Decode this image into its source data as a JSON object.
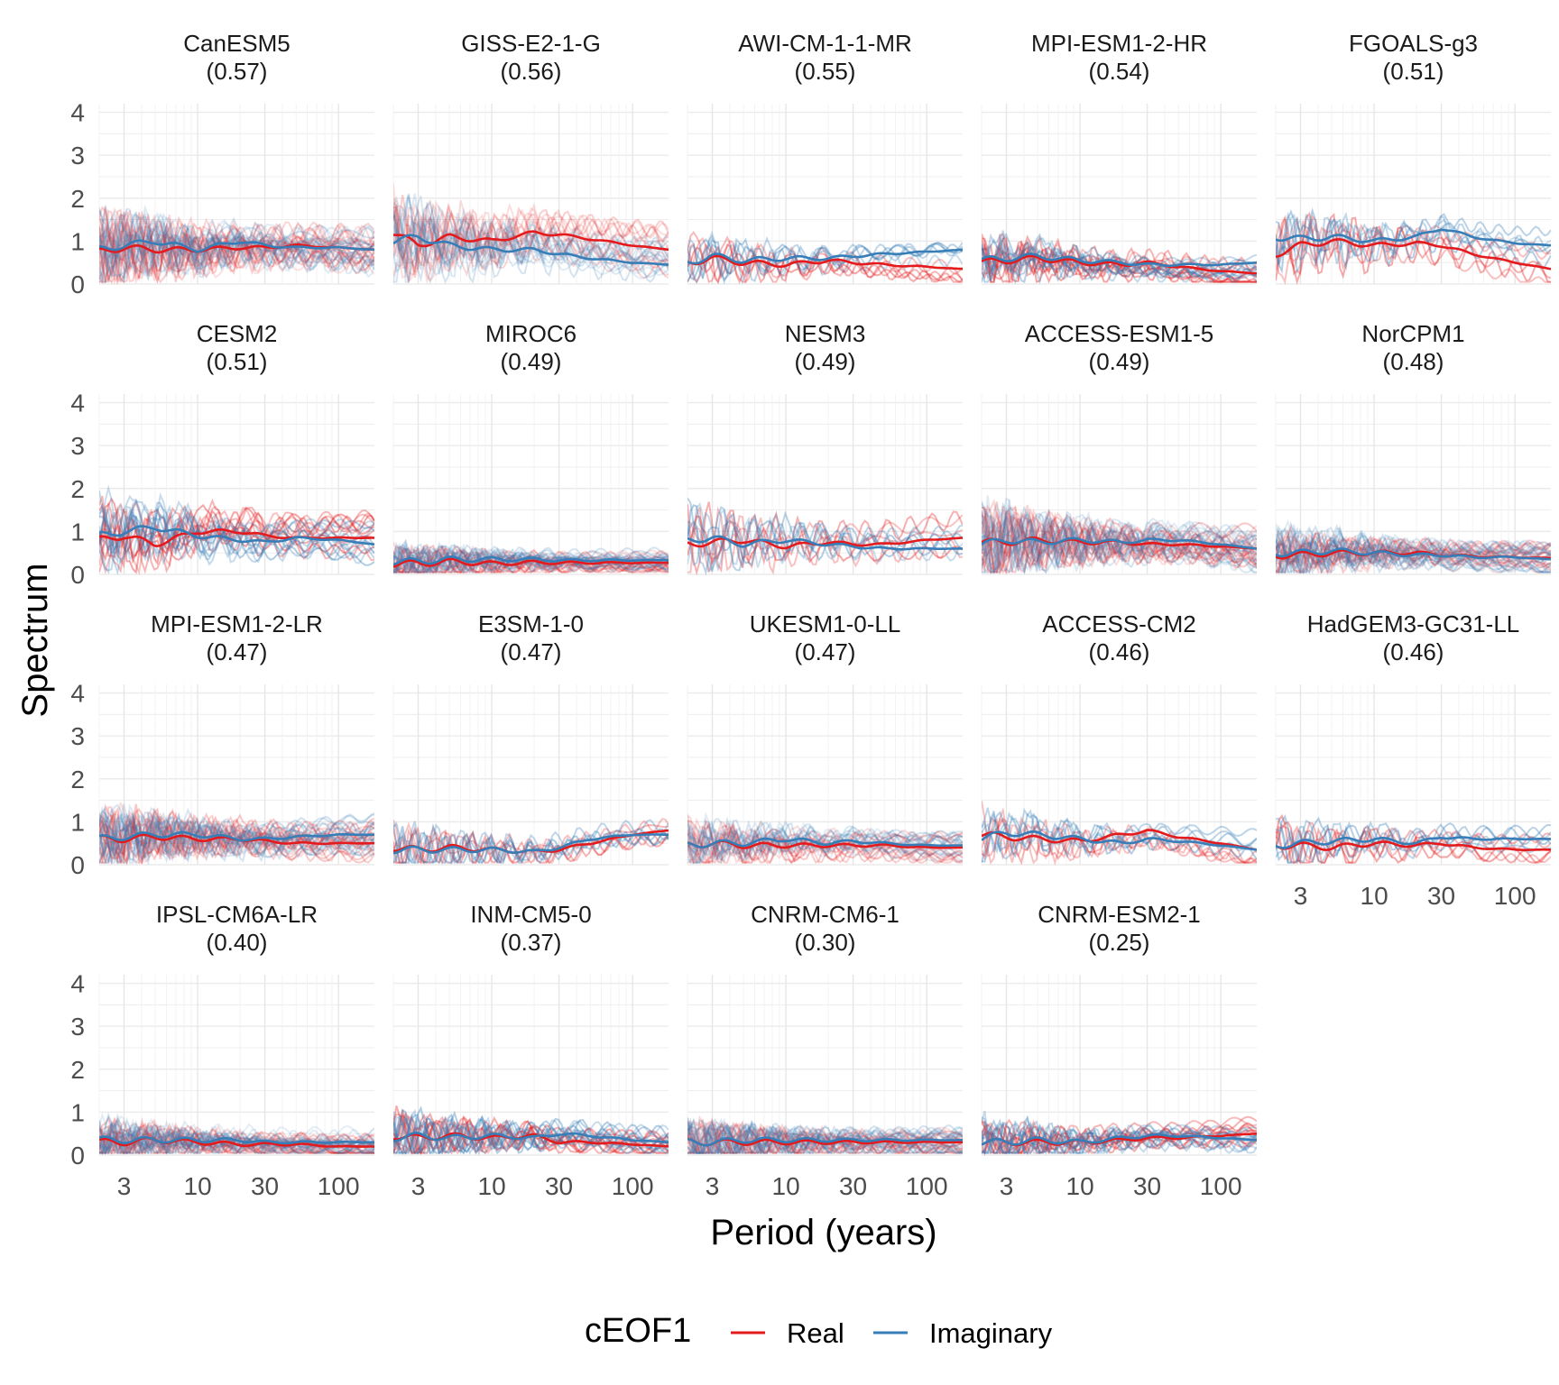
{
  "chart_data": {
    "type": "line",
    "facet_layout": "wrap",
    "xlabel": "Period (years)",
    "ylabel": "Spectrum",
    "x_scale": "log",
    "x_ticks": [
      3,
      10,
      30,
      100
    ],
    "x_tick_labels": [
      "3",
      "10",
      "30",
      "100"
    ],
    "xlim": [
      2,
      180
    ],
    "y_ticks": [
      0,
      1,
      2,
      3,
      4
    ],
    "y_tick_labels": [
      "0",
      "1",
      "2",
      "3",
      "4"
    ],
    "ylim": [
      0,
      4.2
    ],
    "grid": true,
    "legend": {
      "title": "cEOF1",
      "position": "bottom",
      "entries": [
        {
          "label": "Real",
          "color": "#E41A1C"
        },
        {
          "label": "Imaginary",
          "color": "#377EB8"
        }
      ]
    },
    "mean_x": [
      2,
      3,
      5,
      10,
      20,
      30,
      50,
      100,
      180
    ],
    "panels": [
      {
        "model": "CanESM5",
        "score": "(0.57)",
        "real": [
          0.75,
          0.85,
          0.8,
          0.8,
          0.85,
          0.85,
          0.9,
          0.85,
          0.8
        ],
        "imag": [
          0.8,
          0.9,
          1.0,
          0.8,
          1.0,
          0.9,
          0.85,
          0.85,
          0.8
        ],
        "ensemble_spread": 0.5,
        "ensemble_count": 20
      },
      {
        "model": "GISS-E2-1-G",
        "score": "(0.56)",
        "real": [
          1.2,
          0.9,
          1.1,
          1.0,
          1.2,
          1.15,
          1.05,
          0.9,
          0.8
        ],
        "imag": [
          1.0,
          1.1,
          0.9,
          0.8,
          0.8,
          0.7,
          0.6,
          0.5,
          0.45
        ],
        "ensemble_spread": 0.6,
        "ensemble_count": 14
      },
      {
        "model": "AWI-CM-1-1-MR",
        "score": "(0.55)",
        "real": [
          0.5,
          0.6,
          0.5,
          0.45,
          0.55,
          0.5,
          0.45,
          0.4,
          0.35
        ],
        "imag": [
          0.5,
          0.65,
          0.55,
          0.6,
          0.6,
          0.65,
          0.7,
          0.75,
          0.8
        ],
        "ensemble_spread": 0.35,
        "ensemble_count": 5
      },
      {
        "model": "MPI-ESM1-2-HR",
        "score": "(0.54)",
        "real": [
          0.5,
          0.55,
          0.6,
          0.5,
          0.45,
          0.5,
          0.4,
          0.3,
          0.25
        ],
        "imag": [
          0.55,
          0.6,
          0.65,
          0.55,
          0.5,
          0.45,
          0.45,
          0.45,
          0.5
        ],
        "ensemble_spread": 0.35,
        "ensemble_count": 10
      },
      {
        "model": "FGOALS-g3",
        "score": "(0.51)",
        "real": [
          0.7,
          0.9,
          1.0,
          0.9,
          0.95,
          0.9,
          0.7,
          0.5,
          0.35
        ],
        "imag": [
          1.1,
          1.05,
          1.1,
          1.0,
          1.1,
          1.3,
          1.1,
          0.95,
          0.9
        ],
        "ensemble_spread": 0.55,
        "ensemble_count": 5
      },
      {
        "model": "CESM2",
        "score": "(0.51)",
        "real": [
          0.8,
          0.9,
          0.7,
          1.0,
          1.0,
          0.9,
          0.85,
          0.85,
          0.85
        ],
        "imag": [
          0.9,
          1.0,
          1.1,
          0.9,
          0.8,
          0.75,
          0.85,
          0.8,
          0.7
        ],
        "ensemble_spread": 0.5,
        "ensemble_count": 10
      },
      {
        "model": "MIROC6",
        "score": "(0.49)",
        "real": [
          0.25,
          0.25,
          0.3,
          0.25,
          0.28,
          0.27,
          0.27,
          0.27,
          0.27
        ],
        "imag": [
          0.3,
          0.3,
          0.35,
          0.35,
          0.35,
          0.33,
          0.33,
          0.33,
          0.33
        ],
        "ensemble_spread": 0.25,
        "ensemble_count": 20
      },
      {
        "model": "NESM3",
        "score": "(0.49)",
        "real": [
          0.7,
          0.75,
          0.8,
          0.65,
          0.75,
          0.7,
          0.7,
          0.8,
          0.85
        ],
        "imag": [
          0.8,
          0.85,
          0.7,
          0.8,
          0.7,
          0.65,
          0.6,
          0.6,
          0.6
        ],
        "ensemble_spread": 0.5,
        "ensemble_count": 5
      },
      {
        "model": "ACCESS-ESM1-5",
        "score": "(0.49)",
        "real": [
          0.75,
          0.75,
          0.8,
          0.75,
          0.75,
          0.7,
          0.7,
          0.65,
          0.6
        ],
        "imag": [
          0.7,
          0.8,
          0.75,
          0.8,
          0.75,
          0.8,
          0.8,
          0.7,
          0.6
        ],
        "ensemble_spread": 0.5,
        "ensemble_count": 20
      },
      {
        "model": "NorCPM1",
        "score": "(0.48)",
        "real": [
          0.45,
          0.45,
          0.5,
          0.5,
          0.5,
          0.45,
          0.42,
          0.4,
          0.38
        ],
        "imag": [
          0.5,
          0.5,
          0.55,
          0.5,
          0.45,
          0.45,
          0.4,
          0.4,
          0.35
        ],
        "ensemble_spread": 0.35,
        "ensemble_count": 20
      },
      {
        "model": "MPI-ESM1-2-LR",
        "score": "(0.47)",
        "real": [
          0.6,
          0.6,
          0.65,
          0.6,
          0.6,
          0.55,
          0.5,
          0.5,
          0.5
        ],
        "imag": [
          0.6,
          0.65,
          0.7,
          0.7,
          0.6,
          0.6,
          0.65,
          0.7,
          0.7
        ],
        "ensemble_spread": 0.45,
        "ensemble_count": 20
      },
      {
        "model": "E3SM-1-0",
        "score": "(0.47)",
        "real": [
          0.4,
          0.35,
          0.4,
          0.35,
          0.3,
          0.35,
          0.5,
          0.7,
          0.8
        ],
        "imag": [
          0.35,
          0.35,
          0.35,
          0.35,
          0.3,
          0.4,
          0.6,
          0.7,
          0.7
        ],
        "ensemble_spread": 0.35,
        "ensemble_count": 5
      },
      {
        "model": "UKESM1-0-LL",
        "score": "(0.47)",
        "real": [
          0.45,
          0.5,
          0.45,
          0.45,
          0.45,
          0.45,
          0.45,
          0.4,
          0.4
        ],
        "imag": [
          0.45,
          0.5,
          0.5,
          0.6,
          0.5,
          0.55,
          0.5,
          0.45,
          0.45
        ],
        "ensemble_spread": 0.35,
        "ensemble_count": 14
      },
      {
        "model": "ACCESS-CM2",
        "score": "(0.46)",
        "real": [
          0.7,
          0.65,
          0.6,
          0.55,
          0.7,
          0.8,
          0.65,
          0.5,
          0.35
        ],
        "imag": [
          0.6,
          0.75,
          0.7,
          0.6,
          0.5,
          0.6,
          0.55,
          0.45,
          0.35
        ],
        "ensemble_spread": 0.45,
        "ensemble_count": 5
      },
      {
        "model": "HadGEM3-GC31-LL",
        "score": "(0.46)",
        "real": [
          0.45,
          0.45,
          0.4,
          0.5,
          0.45,
          0.5,
          0.4,
          0.35,
          0.35
        ],
        "imag": [
          0.45,
          0.5,
          0.55,
          0.6,
          0.5,
          0.65,
          0.6,
          0.6,
          0.6
        ],
        "ensemble_spread": 0.35,
        "ensemble_count": 5
      },
      {
        "model": "IPSL-CM6A-LR",
        "score": "(0.40)",
        "real": [
          0.3,
          0.3,
          0.35,
          0.3,
          0.25,
          0.25,
          0.25,
          0.2,
          0.2
        ],
        "imag": [
          0.35,
          0.35,
          0.35,
          0.35,
          0.35,
          0.3,
          0.3,
          0.3,
          0.3
        ],
        "ensemble_spread": 0.3,
        "ensemble_count": 20
      },
      {
        "model": "INM-CM5-0",
        "score": "(0.37)",
        "real": [
          0.45,
          0.4,
          0.45,
          0.4,
          0.45,
          0.3,
          0.3,
          0.25,
          0.2
        ],
        "imag": [
          0.4,
          0.45,
          0.4,
          0.45,
          0.4,
          0.5,
          0.45,
          0.35,
          0.3
        ],
        "ensemble_spread": 0.35,
        "ensemble_count": 10
      },
      {
        "model": "CNRM-CM6-1",
        "score": "(0.30)",
        "real": [
          0.3,
          0.3,
          0.3,
          0.3,
          0.3,
          0.3,
          0.3,
          0.3,
          0.3
        ],
        "imag": [
          0.3,
          0.3,
          0.35,
          0.35,
          0.35,
          0.35,
          0.35,
          0.35,
          0.35
        ],
        "ensemble_spread": 0.3,
        "ensemble_count": 20
      },
      {
        "model": "CNRM-ESM2-1",
        "score": "(0.25)",
        "real": [
          0.3,
          0.3,
          0.3,
          0.3,
          0.35,
          0.4,
          0.4,
          0.45,
          0.5
        ],
        "imag": [
          0.3,
          0.3,
          0.35,
          0.3,
          0.4,
          0.45,
          0.45,
          0.4,
          0.35
        ],
        "ensemble_spread": 0.35,
        "ensemble_count": 10
      }
    ]
  }
}
